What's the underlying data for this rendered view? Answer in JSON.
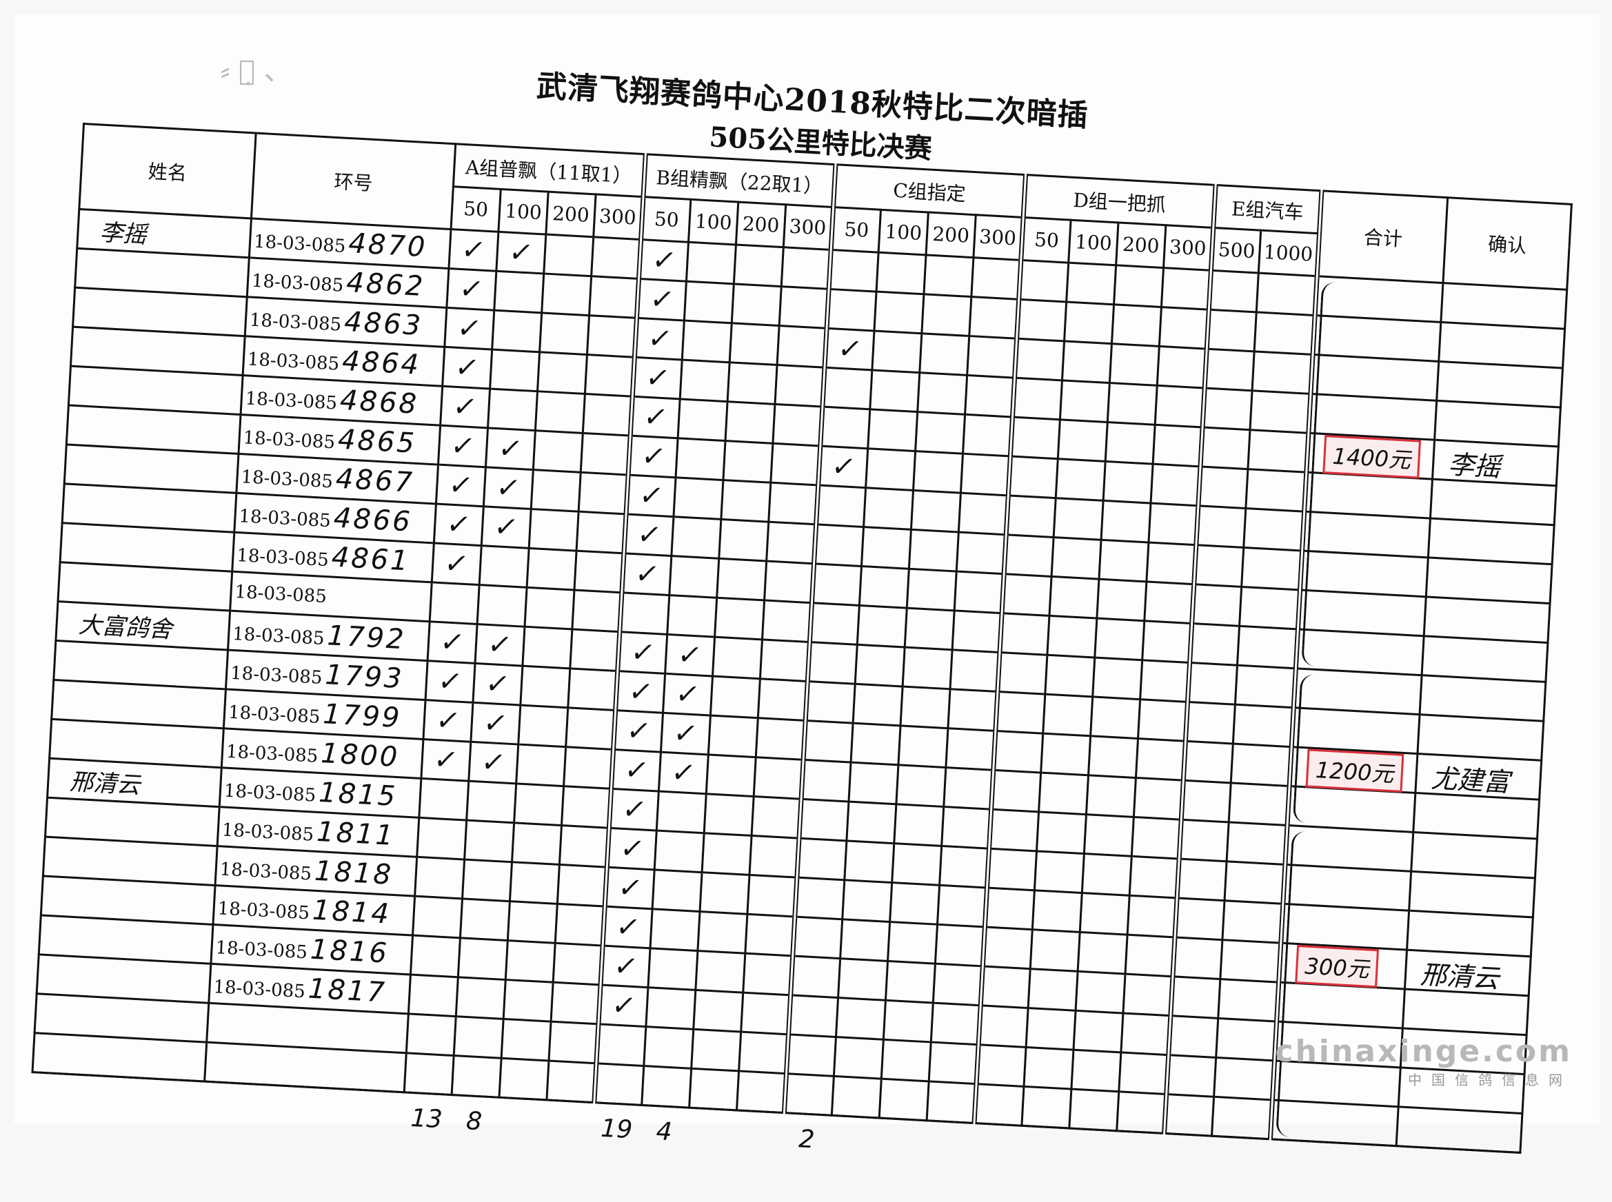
{
  "title": "武清飞翔赛鸽中心2018秋特比二次暗插",
  "subtitle": "505公里特比决赛",
  "headers": {
    "name": "姓名",
    "ring": "环号",
    "groups": [
      {
        "key": "A",
        "label": "A组普飘（11取1）",
        "subs": [
          "50",
          "100",
          "200",
          "300"
        ]
      },
      {
        "key": "B",
        "label": "B组精飘（22取1）",
        "subs": [
          "50",
          "100",
          "200",
          "300"
        ]
      },
      {
        "key": "C",
        "label": "C组指定",
        "subs": [
          "50",
          "100",
          "200",
          "300"
        ]
      },
      {
        "key": "D",
        "label": "D组一把抓",
        "subs": [
          "50",
          "100",
          "200",
          "300"
        ]
      },
      {
        "key": "E",
        "label": "E组汽车",
        "subs": [
          "500",
          "1000"
        ]
      }
    ],
    "total": "合计",
    "confirm": "确认"
  },
  "check_mark": "✓",
  "rows": [
    {
      "name": "李摇",
      "ring_prefix": "18-03-085",
      "ring_no": "4870",
      "checks": [
        "A50",
        "A100",
        "B50"
      ]
    },
    {
      "name": "",
      "ring_prefix": "18-03-085",
      "ring_no": "4862",
      "checks": [
        "A50",
        "B50"
      ]
    },
    {
      "name": "",
      "ring_prefix": "18-03-085",
      "ring_no": "4863",
      "checks": [
        "A50",
        "B50",
        "C50"
      ]
    },
    {
      "name": "",
      "ring_prefix": "18-03-085",
      "ring_no": "4864",
      "checks": [
        "A50",
        "B50"
      ]
    },
    {
      "name": "",
      "ring_prefix": "18-03-085",
      "ring_no": "4868",
      "checks": [
        "A50",
        "B50"
      ],
      "total": "1400元",
      "confirm": "李摇"
    },
    {
      "name": "",
      "ring_prefix": "18-03-085",
      "ring_no": "4865",
      "checks": [
        "A50",
        "A100",
        "B50",
        "C50"
      ]
    },
    {
      "name": "",
      "ring_prefix": "18-03-085",
      "ring_no": "4867",
      "checks": [
        "A50",
        "A100",
        "B50"
      ]
    },
    {
      "name": "",
      "ring_prefix": "18-03-085",
      "ring_no": "4866",
      "checks": [
        "A50",
        "A100",
        "B50"
      ]
    },
    {
      "name": "",
      "ring_prefix": "18-03-085",
      "ring_no": "4861",
      "checks": [
        "A50",
        "B50"
      ]
    },
    {
      "name": "",
      "ring_prefix": "18-03-085",
      "ring_no": "",
      "checks": []
    },
    {
      "name": "大富鸽舍",
      "ring_prefix": "18-03-085",
      "ring_no": "1792",
      "checks": [
        "A50",
        "A100",
        "B50",
        "B100"
      ]
    },
    {
      "name": "",
      "ring_prefix": "18-03-085",
      "ring_no": "1793",
      "checks": [
        "A50",
        "A100",
        "B50",
        "B100"
      ]
    },
    {
      "name": "",
      "ring_prefix": "18-03-085",
      "ring_no": "1799",
      "checks": [
        "A50",
        "A100",
        "B50",
        "B100"
      ],
      "total": "1200元",
      "confirm": "尤建富"
    },
    {
      "name": "",
      "ring_prefix": "18-03-085",
      "ring_no": "1800",
      "checks": [
        "A50",
        "A100",
        "B50",
        "B100"
      ]
    },
    {
      "name": "邢清云",
      "ring_prefix": "18-03-085",
      "ring_no": "1815",
      "checks": [
        "B50"
      ]
    },
    {
      "name": "",
      "ring_prefix": "18-03-085",
      "ring_no": "1811",
      "checks": [
        "B50"
      ]
    },
    {
      "name": "",
      "ring_prefix": "18-03-085",
      "ring_no": "1818",
      "checks": [
        "B50"
      ]
    },
    {
      "name": "",
      "ring_prefix": "18-03-085",
      "ring_no": "1814",
      "checks": [
        "B50"
      ],
      "total": "300元",
      "confirm": "邢清云"
    },
    {
      "name": "",
      "ring_prefix": "18-03-085",
      "ring_no": "1816",
      "checks": [
        "B50"
      ]
    },
    {
      "name": "",
      "ring_prefix": "18-03-085",
      "ring_no": "1817",
      "checks": [
        "B50"
      ]
    },
    {
      "name": "",
      "ring_prefix": "",
      "ring_no": "",
      "checks": []
    },
    {
      "name": "",
      "ring_prefix": "",
      "ring_no": "",
      "checks": []
    }
  ],
  "column_totals": {
    "A50": "13",
    "A100": "8",
    "B50": "19",
    "B100": "4",
    "C50": "2"
  },
  "stamp_color": "#d9303a",
  "watermark": {
    "site": "chinaxinge.com",
    "name": "中国信鸽信息网"
  }
}
